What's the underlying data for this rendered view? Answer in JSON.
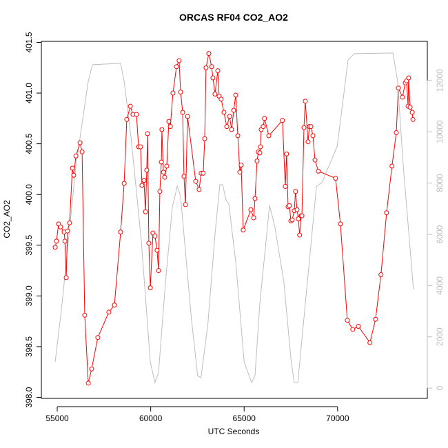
{
  "chart_data": {
    "type": "line",
    "title": "ORCAS RF04 CO2_AO2",
    "xlabel": "UTC Seconds",
    "ylabel": "CO2_AO2",
    "xlim": [
      54150,
      74800
    ],
    "xticks": [
      55000,
      60000,
      65000,
      70000
    ],
    "ylim": [
      397.99,
      401.51
    ],
    "yticks": [
      {
        "value": 398,
        "label": "398.0"
      },
      398.5,
      {
        "value": 399,
        "label": "399.0"
      },
      399.5,
      {
        "value": 400,
        "label": "400.0"
      },
      400.5,
      {
        "value": 401,
        "label": "401.0"
      },
      401.5
    ],
    "y2lim": [
      -400,
      13530
    ],
    "y2ticks": [
      0,
      2000,
      4000,
      6000,
      8000,
      10000,
      12000
    ],
    "y2color": "#bebebe",
    "series": [
      {
        "color": "#bebebe",
        "axis": "y2",
        "markers": false,
        "x": [
          54890,
          55260,
          56000,
          56660,
          56880,
          58390,
          58580,
          58950,
          59500,
          59980,
          60230,
          60420,
          60790,
          61160,
          61420,
          61600,
          62170,
          62510,
          62690,
          63060,
          63440,
          63700,
          63850,
          64030,
          64180,
          64550,
          65000,
          65400,
          65580,
          65840,
          66360,
          66650,
          67130,
          67500,
          67680,
          67870,
          68240,
          68870,
          69160,
          69980,
          70560,
          70890,
          72960,
          73210,
          73510,
          74060
        ],
        "values": [
          1022,
          3309,
          8690,
          11972,
          12618,
          12672,
          11972,
          9766,
          5730,
          1022,
          215,
          619,
          4116,
          7076,
          7883,
          7479,
          2771,
          484,
          404,
          2502,
          6000,
          7936,
          7936,
          7345,
          7183,
          4923,
          1022,
          215,
          484,
          3309,
          7129,
          6269,
          4116,
          1157,
          215,
          215,
          3040,
          7883,
          8017,
          9443,
          12806,
          13048,
          13075,
          11972,
          8690,
          3847
        ]
      },
      {
        "color": "#ff0000",
        "markers": true,
        "x": [
          54890,
          54960,
          55070,
          55180,
          55370,
          55410,
          55480,
          55550,
          55660,
          55810,
          55880,
          56000,
          56220,
          56330,
          56470,
          56660,
          56840,
          57170,
          57760,
          58060,
          58390,
          58580,
          58720,
          58910,
          59050,
          59240,
          59350,
          59460,
          59530,
          59640,
          59720,
          59790,
          59830,
          59900,
          59980,
          60120,
          60230,
          60340,
          60420,
          60490,
          60570,
          60600,
          60680,
          60750,
          60860,
          60970,
          61050,
          61190,
          61380,
          61520,
          61600,
          61710,
          61780,
          61860,
          61970,
          62410,
          62590,
          62700,
          62810,
          62890,
          62960,
          63110,
          63260,
          63330,
          63440,
          63590,
          63660,
          63770,
          63920,
          64070,
          64220,
          64330,
          64440,
          64550,
          64660,
          64770,
          64840,
          64950,
          65360,
          65510,
          65580,
          65690,
          65760,
          65840,
          65870,
          65910,
          66020,
          66090,
          66320,
          67050,
          67200,
          67270,
          67350,
          67420,
          67500,
          67570,
          67680,
          67750,
          67830,
          67900,
          67970,
          68050,
          68090,
          68200,
          68270,
          68420,
          68490,
          68570,
          68680,
          68790,
          68970,
          69890,
          70150,
          70520,
          70810,
          71110,
          71730,
          72030,
          72320,
          72620,
          72910,
          73140,
          73250,
          73470,
          73620,
          73690,
          73770,
          73800,
          73880,
          73990,
          74030
        ],
        "values": [
          399.48,
          399.54,
          399.71,
          399.68,
          399.63,
          399.54,
          399.18,
          399.64,
          399.72,
          400.26,
          400.19,
          400.38,
          400.51,
          400.42,
          398.81,
          398.14,
          398.28,
          398.59,
          398.84,
          398.91,
          399.63,
          400.11,
          400.74,
          400.87,
          400.79,
          400.79,
          400.47,
          400.47,
          400.09,
          400.14,
          399.83,
          400.24,
          400.6,
          399.52,
          399.08,
          399.62,
          399.59,
          399.45,
          399.25,
          400.03,
          400.32,
          400.64,
          400.22,
          400.17,
          400.28,
          400.72,
          400.67,
          401.0,
          401.26,
          401.32,
          401.01,
          400.81,
          400.18,
          399.9,
          400.77,
          400.13,
          400.05,
          400.21,
          400.21,
          400.55,
          401.25,
          401.39,
          401.26,
          401.15,
          400.99,
          401.22,
          400.97,
          400.94,
          400.81,
          400.67,
          400.77,
          400.64,
          400.83,
          400.98,
          400.58,
          400.22,
          400.29,
          399.65,
          399.85,
          399.77,
          399.96,
          400.33,
          400.42,
          400.41,
          400.47,
          400.64,
          400.67,
          400.75,
          400.58,
          400.73,
          400.08,
          400.4,
          399.88,
          399.89,
          399.74,
          399.75,
          399.84,
          400.03,
          399.85,
          399.76,
          399.6,
          399.79,
          399.79,
          400.66,
          400.92,
          400.52,
          400.67,
          400.67,
          400.58,
          400.34,
          400.23,
          400.16,
          399.71,
          398.76,
          398.67,
          398.7,
          398.54,
          398.77,
          399.21,
          399.82,
          400.28,
          400.61,
          401.05,
          400.96,
          401.1,
          401.12,
          400.87,
          401.15,
          400.86,
          400.81,
          400.74
        ]
      }
    ]
  }
}
